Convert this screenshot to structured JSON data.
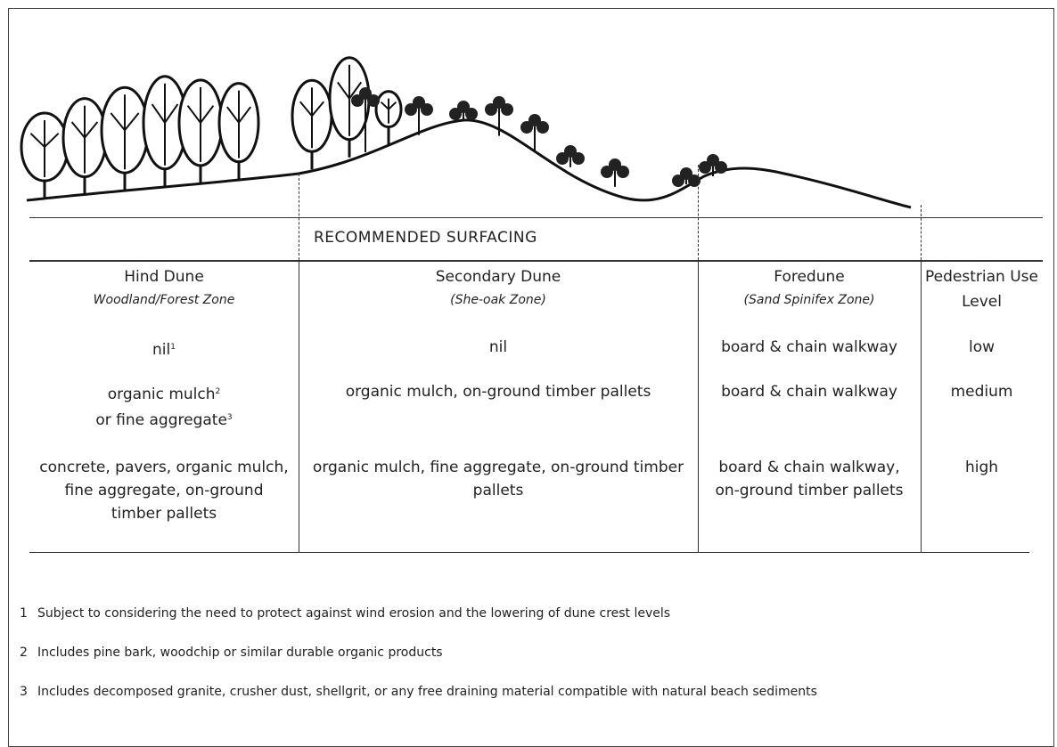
{
  "table": {
    "banner": "RECOMMENDED SURFACING",
    "columns": [
      {
        "title": "Hind Dune",
        "subtitle": "Woodland/Forest Zone"
      },
      {
        "title": "Secondary Dune",
        "subtitle": "(She-oak Zone)"
      },
      {
        "title": "Foredune",
        "subtitle": "(Sand Spinifex Zone)"
      },
      {
        "title": "Pedestrian Use Level"
      }
    ],
    "rows": [
      [
        [
          {
            "text": "nil",
            "sup": "1"
          }
        ],
        "nil",
        "board & chain walkway",
        "low"
      ],
      [
        [
          {
            "text": "organic mulch",
            "sup": "2"
          },
          {
            "text": "or fine aggregate",
            "sup": "3"
          }
        ],
        "organic mulch, on-ground timber pallets",
        "board & chain walkway",
        "medium"
      ],
      [
        "concrete, pavers, organic mulch, fine aggregate, on-ground timber pallets",
        "organic mulch, fine aggregate, on-ground timber pallets",
        "board & chain walkway, on-ground timber pallets",
        "high"
      ]
    ]
  },
  "footnotes": [
    {
      "number": "1",
      "text": "Subject to considering the need to protect against wind erosion and the lowering of dune crest levels"
    },
    {
      "number": "2",
      "text": "Includes pine bark, woodchip or similar durable organic products"
    },
    {
      "number": "3",
      "text": "Includes decomposed granite, crusher dust, shellgrit, or any free draining material compatible with natural beach sediments"
    }
  ]
}
